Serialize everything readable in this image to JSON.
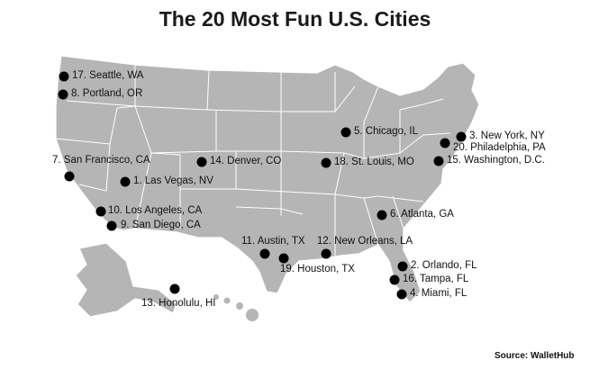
{
  "title": "The 20 Most Fun U.S. Cities",
  "source": "Source: WalletHub",
  "colors": {
    "land": "#b5b5b5",
    "border": "#ffffff",
    "marker": "#000000"
  },
  "cities": [
    {
      "label": "1. Las Vegas, NV"
    },
    {
      "label": "2. Orlando, FL"
    },
    {
      "label": "3. New York, NY"
    },
    {
      "label": "4. Miami, FL"
    },
    {
      "label": "5. Chicago, IL"
    },
    {
      "label": "6. Atlanta, GA"
    },
    {
      "label": "7. San Francisco, CA"
    },
    {
      "label": "8. Portland, OR"
    },
    {
      "label": "9. San Diego, CA"
    },
    {
      "label": "10. Los Angeles, CA"
    },
    {
      "label": "11. Austin, TX"
    },
    {
      "label": "12. New Orleans, LA"
    },
    {
      "label": "13. Honolulu, HI"
    },
    {
      "label": "14. Denver, CO"
    },
    {
      "label": "15. Washington, D.C."
    },
    {
      "label": "16. Tampa, FL"
    },
    {
      "label": "17. Seattle, WA"
    },
    {
      "label": "18. St. Louis, MO"
    },
    {
      "label": "19. Houston, TX"
    },
    {
      "label": "20. Philadelphia, PA"
    }
  ]
}
